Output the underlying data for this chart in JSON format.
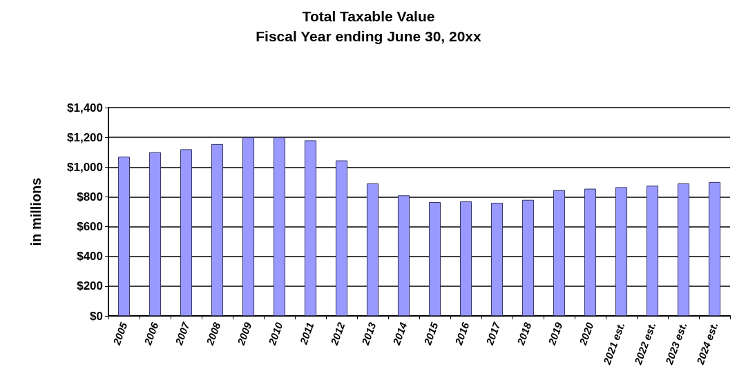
{
  "chart_data": {
    "type": "bar",
    "title": "Total Taxable Value",
    "subtitle": "Fiscal Year ending June 30, 20xx",
    "ylabel": "in millions",
    "categories": [
      "2005",
      "2006",
      "2007",
      "2008",
      "2009",
      "2010",
      "2011",
      "2012",
      "2013",
      "2014",
      "2015",
      "2016",
      "2017",
      "2018",
      "2019",
      "2020",
      "2021 est.",
      "2022 est.",
      "2023 est.",
      "2024 est."
    ],
    "values": [
      1070,
      1100,
      1120,
      1155,
      1200,
      1200,
      1180,
      1045,
      890,
      810,
      765,
      770,
      760,
      780,
      845,
      855,
      865,
      875,
      890,
      900
    ],
    "color": "#9999ff",
    "ylim": [
      0,
      1400
    ],
    "yticks": [
      {
        "value": 0,
        "label": "$0"
      },
      {
        "value": 200,
        "label": "$200"
      },
      {
        "value": 400,
        "label": "$400"
      },
      {
        "value": 600,
        "label": "$600"
      },
      {
        "value": 800,
        "label": "$800"
      },
      {
        "value": 1000,
        "label": "$1,000"
      },
      {
        "value": 1200,
        "label": "$1,200"
      },
      {
        "value": 1400,
        "label": "$1,400"
      }
    ],
    "grid": "y"
  }
}
